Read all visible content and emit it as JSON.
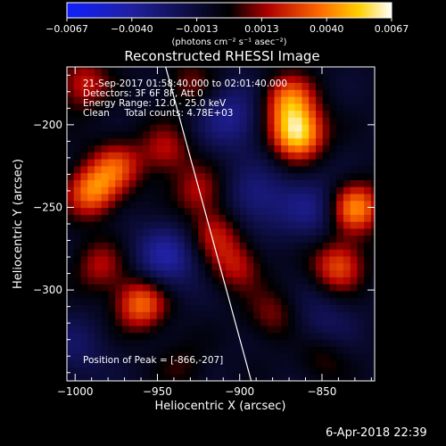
{
  "chart_data": {
    "type": "heatmap",
    "title": "Reconstructed RHESSI Image",
    "xlabel": "Heliocentric X (arcsec)",
    "ylabel": "Heliocentric Y (arcsec)",
    "xlim": [
      -1005,
      -818
    ],
    "ylim": [
      -355,
      -165
    ],
    "x_ticks": [
      -1000,
      -950,
      -900,
      -850
    ],
    "y_ticks": [
      -300,
      -250,
      -200
    ],
    "grid": false,
    "colorbar": {
      "unit_label": "(photons cm⁻² s⁻¹ asec⁻²)",
      "ticks": [
        "-0.0067",
        "-0.0040",
        "-0.0013",
        "0.0013",
        "0.0040",
        "0.0067"
      ],
      "range": [
        -0.0067,
        0.0067
      ],
      "colormap": [
        "#1020ff",
        "#2020a0",
        "#000000",
        "#b00000",
        "#ff6a00",
        "#ffd000",
        "#ffffff"
      ]
    },
    "annotations": [
      "21-Sep-2017 01:58:40.000 to 02:01:40.000",
      "Detectors: 3F 6F 8F, Att 0",
      "Energy Range: 12.0 - 25.0 keV",
      "Clean     Total counts: 4.78E+03"
    ],
    "peak_label": "Position of Peak = [-866,-207]",
    "peak": [
      -866,
      -207
    ],
    "sources": [
      {
        "x": -865,
        "y": -205,
        "amp": 0.0067
      },
      {
        "x": -870,
        "y": -185,
        "amp": 0.0045
      },
      {
        "x": -830,
        "y": -250,
        "amp": 0.0052
      },
      {
        "x": -840,
        "y": -285,
        "amp": 0.004
      },
      {
        "x": -990,
        "y": -240,
        "amp": 0.0046
      },
      {
        "x": -975,
        "y": -225,
        "amp": 0.0035
      },
      {
        "x": -960,
        "y": -308,
        "amp": 0.0046
      },
      {
        "x": -985,
        "y": -285,
        "amp": 0.0025
      },
      {
        "x": -925,
        "y": -240,
        "amp": 0.0025
      },
      {
        "x": -915,
        "y": -265,
        "amp": 0.0028
      },
      {
        "x": -902,
        "y": -285,
        "amp": 0.0027
      },
      {
        "x": -945,
        "y": -215,
        "amp": 0.0026
      },
      {
        "x": -995,
        "y": -175,
        "amp": 0.003
      },
      {
        "x": -930,
        "y": -175,
        "amp": 0.0018
      },
      {
        "x": -880,
        "y": -315,
        "amp": 0.002
      },
      {
        "x": -850,
        "y": -340,
        "amp": 0.0016
      },
      {
        "x": -935,
        "y": -345,
        "amp": 0.0012
      }
    ],
    "negatives": [
      {
        "x": -945,
        "y": -280,
        "amp": 0.003
      },
      {
        "x": -905,
        "y": -195,
        "amp": 0.0026
      },
      {
        "x": -890,
        "y": -245,
        "amp": 0.0022
      },
      {
        "x": -855,
        "y": -250,
        "amp": 0.0022
      },
      {
        "x": -1000,
        "y": -335,
        "amp": 0.0014
      },
      {
        "x": -850,
        "y": -320,
        "amp": 0.0015
      }
    ],
    "limb_line": [
      [
        -945,
        -165
      ],
      [
        -893,
        -355
      ]
    ]
  },
  "footer": {
    "timestamp": "6-Apr-2018 22:39"
  }
}
